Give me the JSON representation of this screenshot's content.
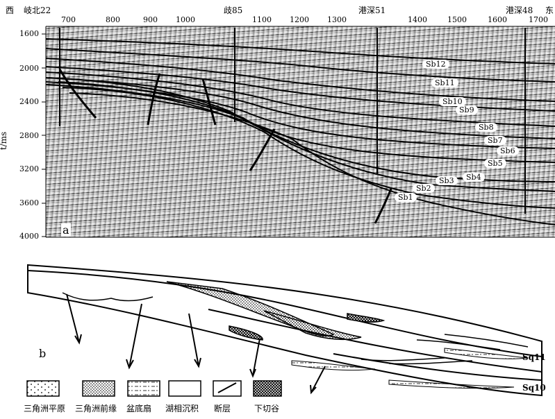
{
  "top_labels": {
    "west": "西",
    "east": "东",
    "wells": [
      "岐北22",
      "歧85",
      "港深51",
      "港深48"
    ]
  },
  "x_ticks": [
    "700",
    "800",
    "900",
    "1000",
    "1100",
    "1200",
    "1300",
    "1400",
    "1500",
    "1600",
    "1700"
  ],
  "y_axis": {
    "label": "t/ms",
    "ticks": [
      "1600",
      "2000",
      "2400",
      "2800",
      "3200",
      "3600",
      "4000"
    ]
  },
  "sequence_boundaries": [
    "Sb12",
    "Sb11",
    "Sb10",
    "Sb9",
    "Sb8",
    "Sb7",
    "Sb6",
    "Sb5",
    "Sb4",
    "Sb3",
    "Sb2",
    "Sb1"
  ],
  "panel_a_label": "a",
  "panel_b_label": "b",
  "sequence_labels": [
    "Sq11",
    "Sq10"
  ],
  "legend": [
    {
      "label": "三角洲平原",
      "pattern": "sparse-dots"
    },
    {
      "label": "三角洲前缘",
      "pattern": "dense-dots"
    },
    {
      "label": "盆底扇",
      "pattern": "dash-dot"
    },
    {
      "label": "湖相沉积",
      "pattern": "blank"
    },
    {
      "label": "断层",
      "pattern": "fault"
    },
    {
      "label": "下切谷",
      "pattern": "crosshatch"
    }
  ],
  "colors": {
    "line": "#000000",
    "background": "#ffffff"
  }
}
